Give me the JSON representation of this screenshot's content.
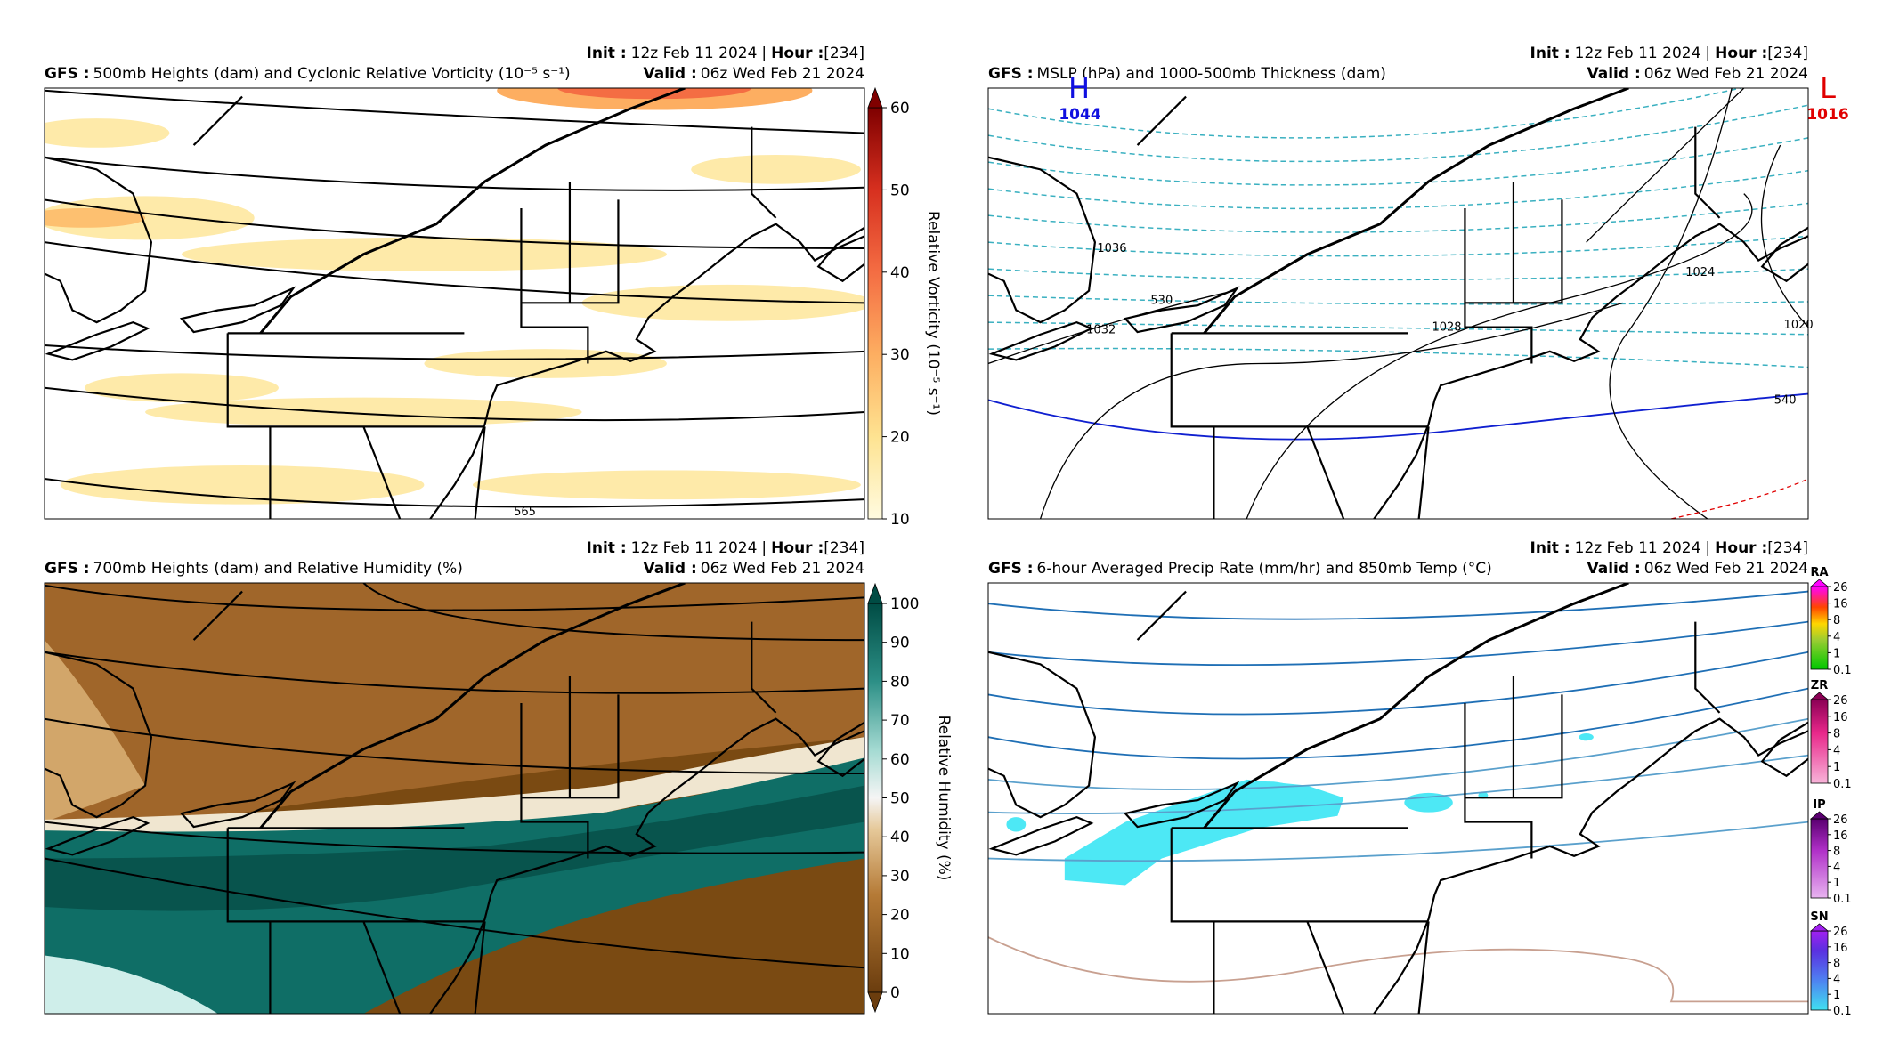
{
  "panels": [
    {
      "model": "GFS :",
      "title": "500mb Heights (dam) and Cyclonic Relative Vorticity (10⁻⁵ s⁻¹)",
      "init_label": "Init :",
      "init": "12z Feb 11 2024",
      "sep": "|",
      "hour_label": "Hour :",
      "hour": "[234]",
      "valid_label": "Valid :",
      "valid": "06z Wed Feb 21 2024",
      "colorbar": {
        "label": "Relative Vorticity (10⁻⁵ s⁻¹)",
        "ticks": [
          10,
          20,
          30,
          40,
          50,
          60
        ]
      },
      "contour_labels": [
        "565"
      ]
    },
    {
      "model": "GFS :",
      "title": "MSLP (hPa) and 1000-500mb Thickness (dam)",
      "init_label": "Init :",
      "init": "12z Feb 11 2024",
      "sep": "|",
      "hour_label": "Hour :",
      "hour": "[234]",
      "valid_label": "Valid :",
      "valid": "06z Wed Feb 21 2024",
      "contour_labels": [
        "1036",
        "1032",
        "1028",
        "1024",
        "1020",
        "530",
        "540"
      ],
      "highs": [
        {
          "letter": "H",
          "value": "1044"
        }
      ],
      "lows": [
        {
          "letter": "L",
          "value": "1016"
        }
      ]
    },
    {
      "model": "GFS :",
      "title": "700mb Heights (dam) and Relative Humidity (%)",
      "init_label": "Init :",
      "init": "12z Feb 11 2024",
      "sep": "|",
      "hour_label": "Hour :",
      "hour": "[234]",
      "valid_label": "Valid :",
      "valid": "06z Wed Feb 21 2024",
      "colorbar": {
        "label": "Relative Humidity (%)",
        "ticks": [
          0,
          10,
          20,
          30,
          40,
          50,
          60,
          70,
          80,
          90,
          100
        ]
      }
    },
    {
      "model": "GFS :",
      "title": "6-hour Averaged Precip Rate (mm/hr) and 850mb Temp (°C)",
      "init_label": "Init :",
      "init": "12z Feb 11 2024",
      "sep": "|",
      "hour_label": "Hour :",
      "hour": "[234]",
      "valid_label": "Valid :",
      "valid": "06z Wed Feb 21 2024",
      "precip_bars": [
        {
          "type": "RA",
          "ticks": [
            0.1,
            1,
            4,
            8,
            16,
            26
          ]
        },
        {
          "type": "ZR",
          "ticks": [
            0.1,
            1,
            4,
            8,
            16,
            26
          ]
        },
        {
          "type": "IP",
          "ticks": [
            0.1,
            1,
            4,
            8,
            16,
            26
          ]
        },
        {
          "type": "SN",
          "ticks": [
            0.1,
            1,
            4,
            8,
            16,
            26
          ]
        }
      ]
    }
  ]
}
